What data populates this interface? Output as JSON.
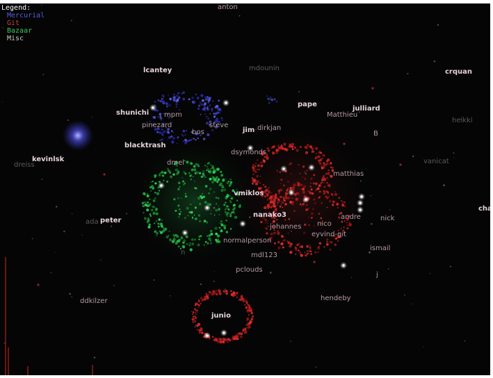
{
  "legend": {
    "title": "Legend:",
    "items": [
      {
        "label": "Mercurial",
        "color": "#5a5ae6"
      },
      {
        "label": "Git",
        "color": "#d23c3c"
      },
      {
        "label": "Bazaar",
        "color": "#3cc85a"
      },
      {
        "label": "Misc",
        "color": "#c8c8c8"
      }
    ]
  },
  "colors": {
    "background": "#050505",
    "bright_label": "#e6d2dc",
    "mid_label": "#b49ba5",
    "dim_label": "#5a5a5a",
    "white_node": "#ffffff"
  },
  "nodes": [
    {
      "name": "anton",
      "tone": "mid"
    },
    {
      "name": "lcantey",
      "tone": "bright"
    },
    {
      "name": "mdounin",
      "tone": "dim"
    },
    {
      "name": "crquan",
      "tone": "bright"
    },
    {
      "name": "shunichi",
      "tone": "bright"
    },
    {
      "name": "mpm",
      "tone": "mid"
    },
    {
      "name": "pinezard",
      "tone": "mid"
    },
    {
      "name": "bos",
      "tone": "mid"
    },
    {
      "name": "steve",
      "tone": "mid"
    },
    {
      "name": "jim",
      "tone": "bright"
    },
    {
      "name": "dirkjan",
      "tone": "mid"
    },
    {
      "name": "pape",
      "tone": "bright"
    },
    {
      "name": "julliard",
      "tone": "bright"
    },
    {
      "name": "Matthieu",
      "tone": "mid"
    },
    {
      "name": "B",
      "tone": "mid"
    },
    {
      "name": "blacktrash",
      "tone": "bright"
    },
    {
      "name": "dsymonds",
      "tone": "mid"
    },
    {
      "name": "kevinlsk",
      "tone": "bright"
    },
    {
      "name": "dreiss",
      "tone": "dim"
    },
    {
      "name": "vanicat",
      "tone": "dim"
    },
    {
      "name": "dmel",
      "tone": "mid"
    },
    {
      "name": "vmiklos",
      "tone": "bright"
    },
    {
      "name": "matthias",
      "tone": "mid"
    },
    {
      "name": "nanako3",
      "tone": "bright"
    },
    {
      "name": "peter",
      "tone": "bright"
    },
    {
      "name": "ada",
      "tone": "dim"
    },
    {
      "name": "nick",
      "tone": "mid"
    },
    {
      "name": "andre",
      "tone": "mid"
    },
    {
      "name": "johannes",
      "tone": "mid"
    },
    {
      "name": "nico",
      "tone": "mid"
    },
    {
      "name": "eyvind-git",
      "tone": "mid"
    },
    {
      "name": "normalperson",
      "tone": "mid"
    },
    {
      "name": "mdl123",
      "tone": "mid"
    },
    {
      "name": "ismail",
      "tone": "mid"
    },
    {
      "name": "pclouds",
      "tone": "mid"
    },
    {
      "name": "j",
      "tone": "mid"
    },
    {
      "name": "ddkilzer",
      "tone": "mid"
    },
    {
      "name": "hendeby",
      "tone": "mid"
    },
    {
      "name": "junio",
      "tone": "bright"
    },
    {
      "name": "cha",
      "tone": "bright"
    },
    {
      "name": "n",
      "tone": "dim"
    },
    {
      "name": "heikki",
      "tone": "dim"
    }
  ]
}
